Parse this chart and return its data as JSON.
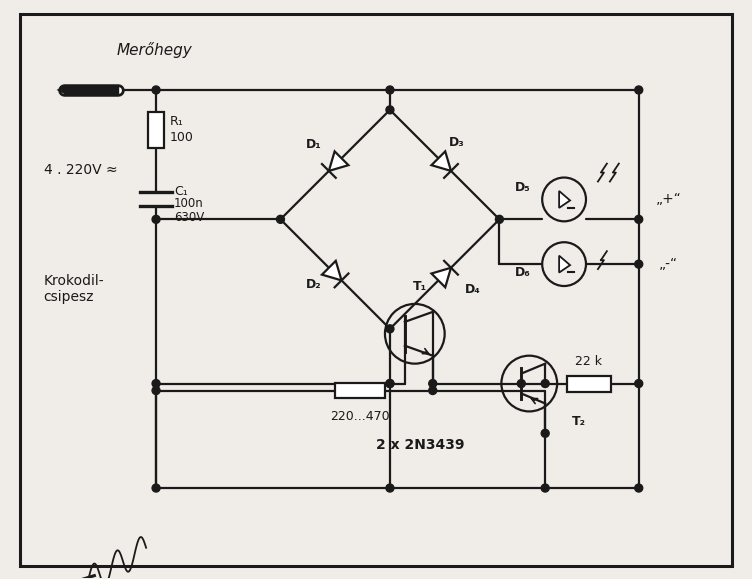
{
  "bg_color": "#f0ede8",
  "line_color": "#1a1a1a",
  "title": "Merőhegy",
  "label_krokodil": "Krokodil-\ncsipesz",
  "label_voltage": "4 . 220V ≈",
  "label_r1_top": "R₁",
  "label_r1_bot": "100",
  "label_c1_top": "C₁",
  "label_c1_mid": "100n",
  "label_c1_bot": "630V",
  "label_d1": "D₁",
  "label_d2": "D₂",
  "label_d3": "D₃",
  "label_d4": "D₄",
  "label_d5": "D₅",
  "label_d6": "D₆",
  "label_t1": "T₁",
  "label_t2": "T₂",
  "label_22k": "22 k",
  "label_220470": "220...470",
  "label_2n3439": "2 x 2N3439",
  "label_plus": "„+“",
  "label_minus": "„-“"
}
